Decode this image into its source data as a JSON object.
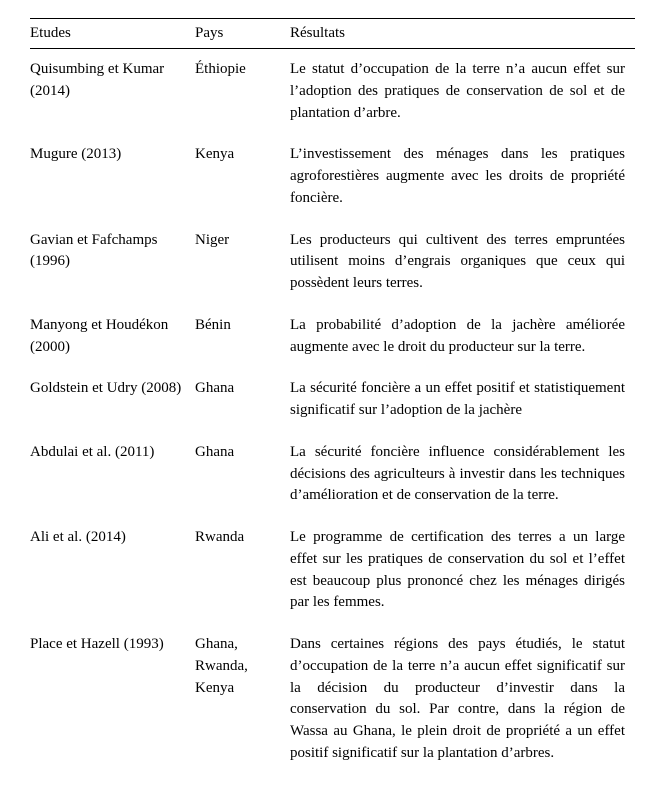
{
  "table": {
    "headers": {
      "etudes": "Etudes",
      "pays": "Pays",
      "resultats": "Résultats"
    },
    "rows": [
      {
        "etudes": "Quisumbing et Kumar (2014)",
        "pays": "Éthiopie",
        "resultats": "Le statut d’occupation de la terre n’a aucun effet sur l’adoption des pratiques de conservation de sol et de plantation d’arbre."
      },
      {
        "etudes": "Mugure (2013)",
        "pays": "Kenya",
        "resultats": "L’investissement des ménages dans les pratiques agroforestières augmente avec les droits de propriété foncière."
      },
      {
        "etudes": "Gavian et Fafchamps (1996)",
        "pays": "Niger",
        "resultats": "Les producteurs qui cultivent des terres empruntées utilisent moins d’engrais organiques que ceux qui possèdent leurs terres."
      },
      {
        "etudes": "Manyong et Houdékon (2000)",
        "pays": "Bénin",
        "resultats": "La probabilité d’adoption de la jachère améliorée augmente avec le droit du producteur sur la terre."
      },
      {
        "etudes": "Goldstein et Udry (2008)",
        "pays": "Ghana",
        "resultats": "La sécurité foncière a un effet positif et statistiquement significatif sur l’adoption de la jachère"
      },
      {
        "etudes": "Abdulai et al. (2011)",
        "pays": "Ghana",
        "resultats": "La sécurité foncière influence considérablement les décisions des agriculteurs à investir dans les techniques d’amélioration et de conservation de la terre."
      },
      {
        "etudes": "Ali et al. (2014)",
        "pays": "Rwanda",
        "resultats": "Le programme de certification des terres a un large effet sur les pratiques de conservation du sol et  l’effet est beaucoup plus prononcé chez les ménages dirigés par les femmes."
      },
      {
        "etudes": "Place et Hazell (1993)",
        "pays": "Ghana, Rwanda, Kenya",
        "resultats": "Dans certaines régions des pays étudiés, le statut d’occupation de la terre n’a aucun effet significatif sur la décision du producteur d’investir dans la conservation du sol. Par contre, dans la région de Wassa au Ghana, le plein droit de propriété a un effet positif significatif sur la plantation d’arbres."
      }
    ]
  }
}
